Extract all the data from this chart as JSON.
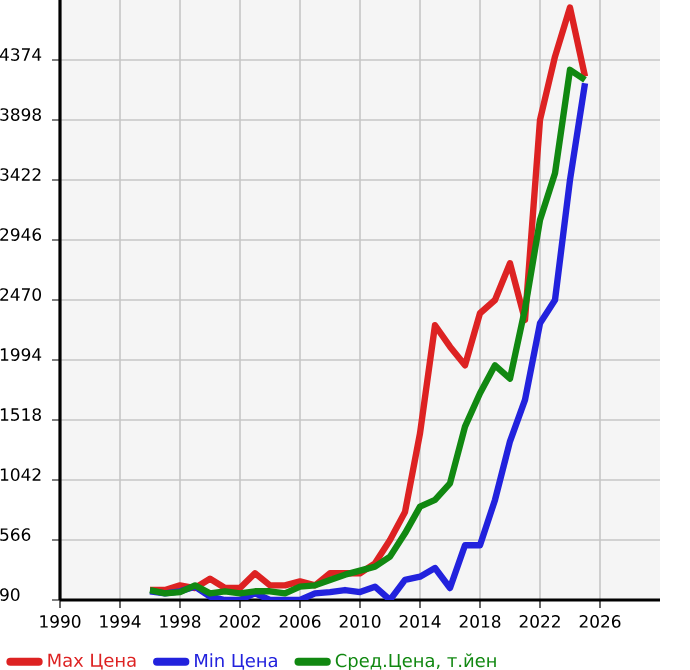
{
  "chart_data": {
    "type": "line",
    "x": [
      1996,
      1997,
      1998,
      1999,
      2000,
      2001,
      2002,
      2003,
      2004,
      2005,
      2006,
      2007,
      2008,
      2009,
      2010,
      2011,
      2012,
      2013,
      2014,
      2015,
      2016,
      2017,
      2018,
      2019,
      2020,
      2021,
      2022,
      2023,
      2024,
      2025
    ],
    "series": [
      {
        "name": "Max Цена",
        "color": "#dd2222",
        "values": [
          169,
          169,
          206,
          185,
          259,
          185,
          185,
          302,
          206,
          206,
          238,
          206,
          302,
          302,
          302,
          381,
          566,
          788,
          1412,
          2270,
          2100,
          1952,
          2365,
          2470,
          2761,
          2312,
          3899,
          4401,
          4790,
          4243
        ]
      },
      {
        "name": "Min Цена",
        "color": "#2222dd",
        "values": [
          159,
          143,
          159,
          196,
          116,
          90,
          90,
          143,
          90,
          90,
          90,
          143,
          153,
          169,
          153,
          196,
          90,
          249,
          275,
          344,
          185,
          524,
          524,
          884,
          1349,
          1677,
          2285,
          2470,
          3423,
          4190
        ]
      },
      {
        "name": "Сред.Цена, т.йен",
        "color": "#118811",
        "values": [
          169,
          143,
          153,
          206,
          143,
          159,
          143,
          159,
          159,
          143,
          196,
          206,
          249,
          291,
          323,
          355,
          434,
          619,
          831,
          884,
          1016,
          1465,
          1730,
          1952,
          1846,
          2400,
          3105,
          3476,
          4296,
          4216
        ]
      }
    ],
    "xlim": [
      1990,
      2030
    ],
    "xticks": [
      1990,
      1994,
      1998,
      2002,
      2006,
      2010,
      2014,
      2018,
      2022,
      2026
    ],
    "ylim": [
      90,
      4850
    ],
    "yticks": [
      90,
      566,
      1042,
      1518,
      1994,
      2470,
      2946,
      3422,
      3898,
      4374
    ],
    "grid": true,
    "legend": "bottom"
  }
}
